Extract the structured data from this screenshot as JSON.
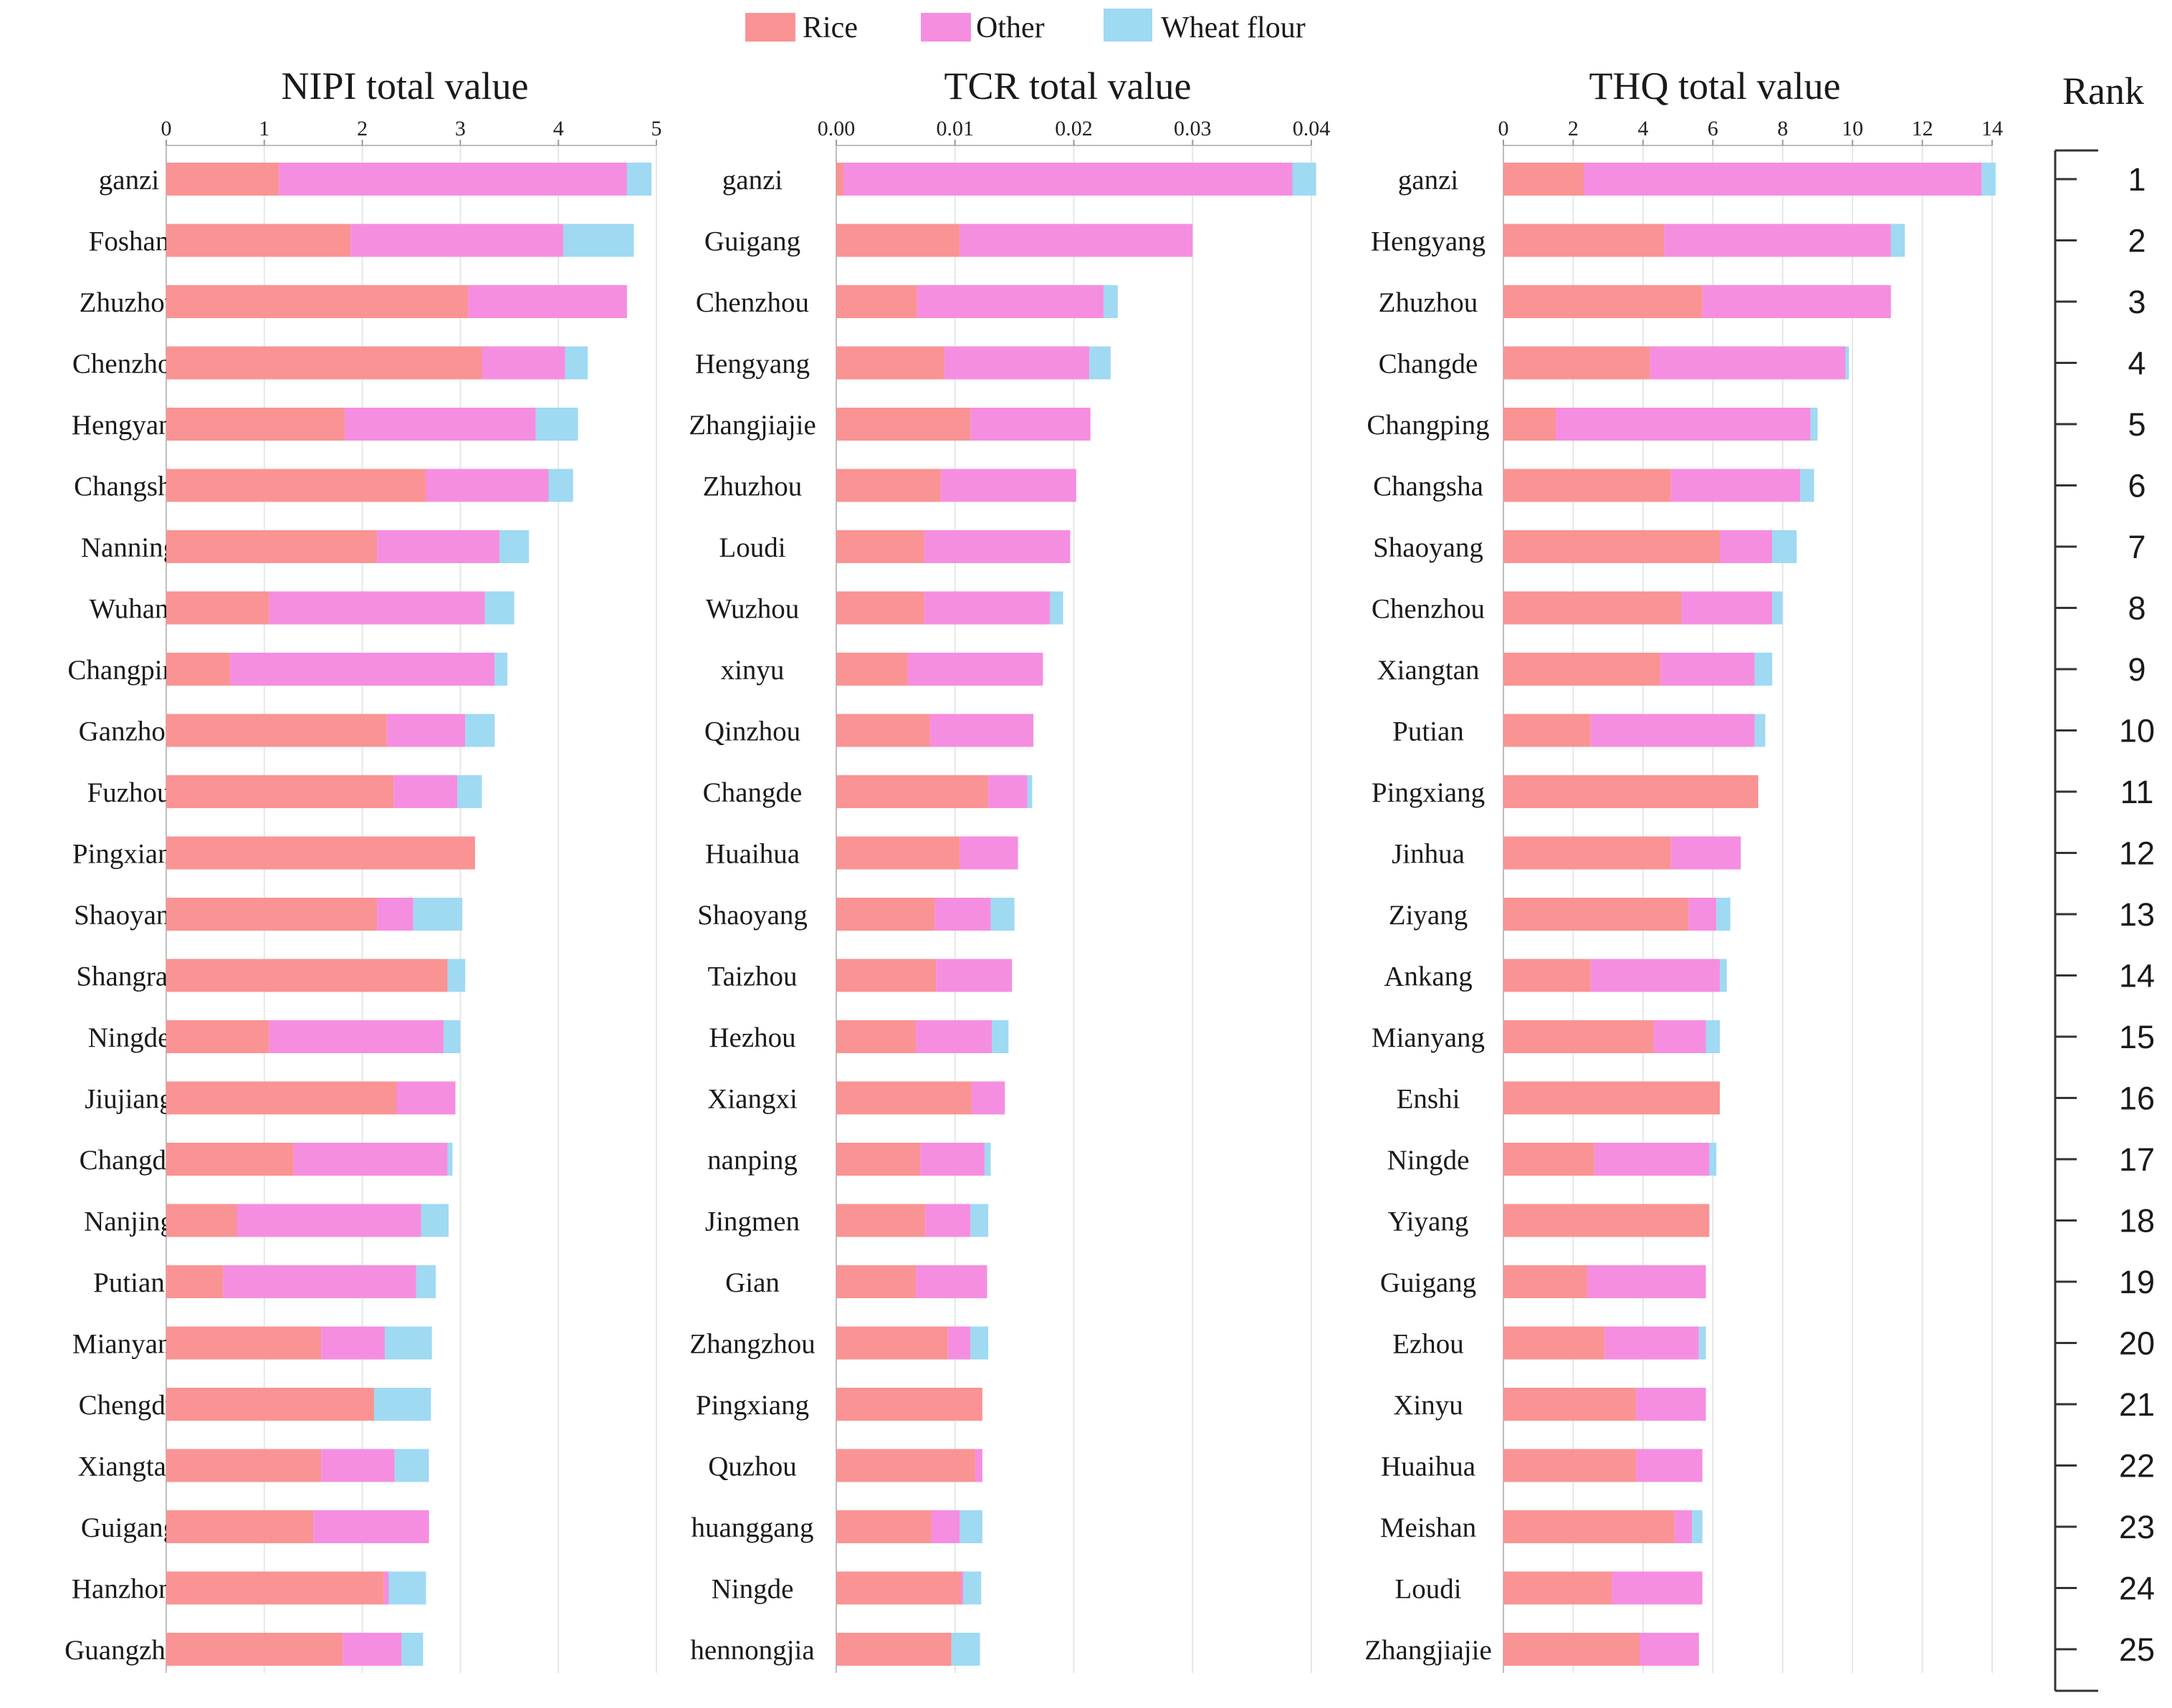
{
  "legend": [
    {
      "label": "Rice",
      "color": "#fa9393"
    },
    {
      "label": "Other",
      "color": "#f58ee0"
    },
    {
      "label": "Wheat flour",
      "color": "#9fd9f2"
    }
  ],
  "rank_title": "Rank",
  "ranks": [
    "1",
    "2",
    "3",
    "4",
    "5",
    "6",
    "7",
    "8",
    "9",
    "10",
    "11",
    "12",
    "13",
    "14",
    "15",
    "16",
    "17",
    "18",
    "19",
    "20",
    "21",
    "22",
    "23",
    "24",
    "25"
  ],
  "chart_data": [
    {
      "type": "bar",
      "orientation": "horizontal",
      "stacked": true,
      "title": "NIPI total value",
      "xlim": [
        0,
        5
      ],
      "ticks": [
        "0",
        "1",
        "2",
        "3",
        "4",
        "5"
      ],
      "tick_values": [
        0,
        1,
        2,
        3,
        4,
        5
      ],
      "categories": [
        "ganzi",
        "Foshan",
        "Zhuzhou",
        "Chenzhou",
        "Hengyang",
        "Changsha",
        "Nanning",
        "Wuhan",
        "Changping",
        "Ganzhou",
        "Fuzhou",
        "Pingxiang",
        "Shaoyang",
        "Shangrao",
        "Ningde",
        "Jiujiang",
        "Changde",
        "Nanjing",
        "Putian",
        "Mianyang",
        "Chengdu",
        "Xiangtan",
        "Guigang",
        "Hanzhong",
        "Guangzhou"
      ],
      "series": [
        {
          "name": "Rice",
          "values": [
            1.15,
            1.88,
            3.08,
            3.22,
            1.82,
            2.65,
            2.15,
            1.05,
            0.65,
            2.25,
            2.32,
            3.15,
            2.15,
            2.87,
            1.05,
            2.35,
            1.3,
            0.72,
            0.58,
            1.58,
            2.12,
            1.58,
            1.5,
            2.22,
            1.8
          ]
        },
        {
          "name": "Other",
          "values": [
            3.55,
            2.17,
            1.62,
            0.85,
            1.95,
            1.25,
            1.25,
            2.2,
            2.7,
            0.8,
            0.65,
            0.0,
            0.37,
            0.0,
            1.78,
            0.6,
            1.57,
            1.88,
            1.97,
            0.65,
            0.0,
            0.75,
            1.18,
            0.05,
            0.6
          ]
        },
        {
          "name": "Wheat flour",
          "values": [
            0.25,
            0.72,
            0.0,
            0.23,
            0.43,
            0.25,
            0.3,
            0.3,
            0.13,
            0.3,
            0.25,
            0.0,
            0.5,
            0.18,
            0.17,
            0.0,
            0.05,
            0.28,
            0.2,
            0.48,
            0.58,
            0.35,
            0.0,
            0.38,
            0.22
          ]
        }
      ]
    },
    {
      "type": "bar",
      "orientation": "horizontal",
      "stacked": true,
      "title": "TCR total value",
      "xlim": [
        0,
        0.04
      ],
      "ticks": [
        "0.00",
        "0.01",
        "0.02",
        "0.03",
        "0.04"
      ],
      "tick_values": [
        0,
        0.01,
        0.02,
        0.03,
        0.04
      ],
      "categories": [
        "ganzi",
        "Guigang",
        "Chenzhou",
        "Hengyang",
        "Zhangjiajie",
        "Zhuzhou",
        "Loudi",
        "Wuzhou",
        "xinyu",
        "Qinzhou",
        "Changde",
        "Huaihua",
        "Shaoyang",
        "Taizhou",
        "Hezhou",
        "Xiangxi",
        "nanping",
        "Jingmen",
        "Gian",
        "Zhangzhou",
        "Pingxiang",
        "Quzhou",
        "huanggang",
        "Ningde",
        "hennongjia"
      ],
      "series": [
        {
          "name": "Rice",
          "values": [
            0.0006,
            0.0104,
            0.0068,
            0.0091,
            0.0113,
            0.0088,
            0.0074,
            0.0074,
            0.006,
            0.0079,
            0.0128,
            0.0104,
            0.0083,
            0.0084,
            0.0067,
            0.0114,
            0.0071,
            0.0075,
            0.0067,
            0.0094,
            0.0123,
            0.0117,
            0.008,
            0.0105,
            0.0097
          ]
        },
        {
          "name": "Other",
          "values": [
            0.0378,
            0.0196,
            0.0157,
            0.0122,
            0.0101,
            0.0114,
            0.0123,
            0.0106,
            0.0114,
            0.0087,
            0.0033,
            0.0049,
            0.0047,
            0.0064,
            0.0064,
            0.0028,
            0.0054,
            0.0038,
            0.006,
            0.0019,
            0.0,
            0.0006,
            0.0024,
            0.0002,
            0.0
          ]
        },
        {
          "name": "Wheat flour",
          "values": [
            0.002,
            0.0,
            0.0012,
            0.0018,
            0.0,
            0.0,
            0.0,
            0.0011,
            0.0,
            0.0,
            0.0004,
            0.0,
            0.002,
            0.0,
            0.0014,
            0.0,
            0.0005,
            0.0015,
            0.0,
            0.0015,
            0.0,
            0.0,
            0.0019,
            0.0015,
            0.0024
          ]
        }
      ]
    },
    {
      "type": "bar",
      "orientation": "horizontal",
      "stacked": true,
      "title": "THQ total value",
      "xlim": [
        0,
        14
      ],
      "ticks": [
        "0",
        "2",
        "4",
        "6",
        "8",
        "10",
        "12",
        "14"
      ],
      "tick_values": [
        0,
        2,
        4,
        6,
        8,
        10,
        12,
        14
      ],
      "categories": [
        "ganzi",
        "Hengyang",
        "Zhuzhou",
        "Changde",
        "Changping",
        "Changsha",
        "Shaoyang",
        "Chenzhou",
        "Xiangtan",
        "Putian",
        "Pingxiang",
        "Jinhua",
        "Ziyang",
        "Ankang",
        "Mianyang",
        "Enshi",
        "Ningde",
        "Yiyang",
        "Guigang",
        "Ezhou",
        "Xinyu",
        "Huaihua",
        "Meishan",
        "Loudi",
        "Zhangjiajie"
      ],
      "series": [
        {
          "name": "Rice",
          "values": [
            2.3,
            4.6,
            5.7,
            4.2,
            1.5,
            4.8,
            6.2,
            5.1,
            4.5,
            2.5,
            7.3,
            4.8,
            5.3,
            2.5,
            4.3,
            6.2,
            2.6,
            5.9,
            2.4,
            2.9,
            3.8,
            3.8,
            4.9,
            3.1,
            3.9
          ]
        },
        {
          "name": "Other",
          "values": [
            11.4,
            6.5,
            5.4,
            5.6,
            7.3,
            3.7,
            1.5,
            2.6,
            2.7,
            4.7,
            0.0,
            2.0,
            0.8,
            3.7,
            1.5,
            0.0,
            3.3,
            0.0,
            3.4,
            2.7,
            2.0,
            1.9,
            0.5,
            2.6,
            1.7
          ]
        },
        {
          "name": "Wheat flour",
          "values": [
            0.4,
            0.4,
            0.0,
            0.1,
            0.2,
            0.4,
            0.7,
            0.3,
            0.5,
            0.3,
            0.0,
            0.0,
            0.4,
            0.2,
            0.4,
            0.0,
            0.2,
            0.0,
            0.0,
            0.2,
            0.0,
            0.0,
            0.3,
            0.0,
            0.0
          ]
        }
      ]
    }
  ]
}
